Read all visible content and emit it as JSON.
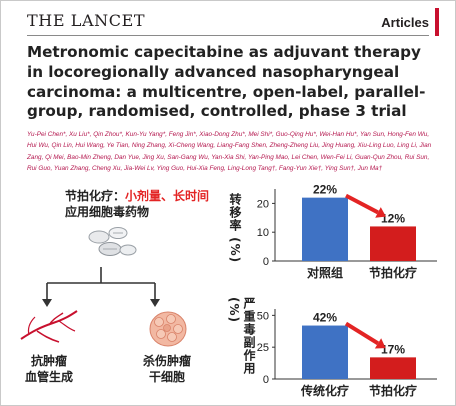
{
  "header": {
    "journal": "THE LANCET",
    "section": "Articles"
  },
  "paper": {
    "title": "Metronomic capecitabine as adjuvant therapy in locoregionally advanced nasopharyngeal carcinoma: a multicentre, open-label, parallel-group, randomised, controlled, phase 3 trial",
    "authors": "Yu-Pei Chen*, Xu Liu*, Qin Zhou*, Kun-Yu Yang*, Feng Jin*, Xiao-Dong Zhu*, Mei Shi*, Guo-Qing Hu*, Wei-Han Hu*, Yan Sun, Hong-Fen Wu, Hui Wu, Qin Lin, Hui Wang, Ye Tian, Ning Zhang, Xi-Cheng Wang, Liang-Fang Shen, Zheng-Zheng Liu, Jing Huang, Xiu-Ling Luo, Ling Li, Jian Zang, Qi Mei, Bao-Min Zheng, Dan Yue, Jing Xu, San-Gang Wu, Yan-Xia Shi, Yan-Ping Mao, Lei Chen, Wen-Fei Li, Guan-Qun Zhou, Rui Sun, Rui Guo, Yuan Zhang, Cheng Xu, Jia-Wei Lv, Ying Guo, Hui-Xia Feng, Ling-Long Tang†, Fang-Yun Xie†, Ying Sun†, Jun Ma†"
  },
  "infographic": {
    "label_prefix": "节拍化疗：",
    "label_highlight": "小剂量、长时间",
    "label_sub": "应用细胞毒药物",
    "left_outcome": [
      "抗肿瘤",
      "血管生成"
    ],
    "right_outcome": [
      "杀伤肿瘤",
      "干细胞"
    ],
    "icons": [
      "pill-bottle-icon",
      "blood-vessel-icon",
      "tumor-cell-icon",
      "arrow-tree-icon"
    ]
  },
  "colors": {
    "blue_bar": "#3f72c4",
    "red_bar": "#d31d1d",
    "accent_red": "#e32424",
    "lancet_red": "#c8102e"
  },
  "chart_data": [
    {
      "type": "bar",
      "ylabel": "转移率 (%)",
      "categories": [
        "对照组",
        "节拍化疗"
      ],
      "values": [
        22,
        12
      ],
      "data_labels": [
        "22%",
        "12%"
      ],
      "yticks": [
        0,
        10,
        20
      ],
      "ylim": [
        0,
        25
      ],
      "grid": false
    },
    {
      "type": "bar",
      "ylabel": "严重毒副作用 (%)",
      "categories": [
        "传统化疗",
        "节拍化疗"
      ],
      "values": [
        42,
        17
      ],
      "data_labels": [
        "42%",
        "17%"
      ],
      "yticks": [
        0,
        25,
        50
      ],
      "ylim": [
        0,
        55
      ],
      "grid": false
    }
  ]
}
